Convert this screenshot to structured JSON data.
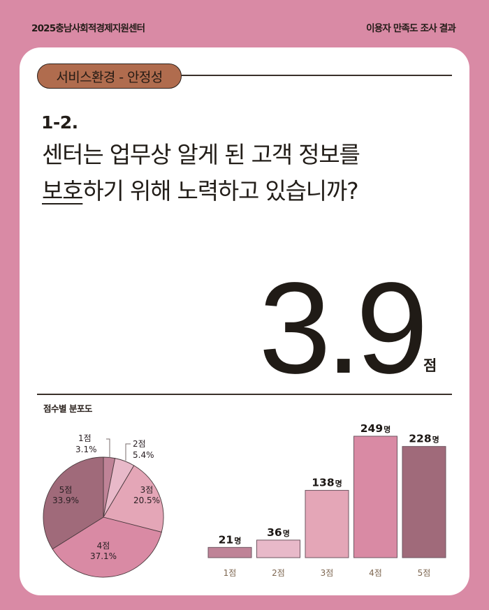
{
  "header": {
    "org_title": "2025충남사회적경제지원센터",
    "report_title": "이용자 만족도 조사 결과"
  },
  "section": {
    "category_pill": "서비스환경 - 안정성"
  },
  "question": {
    "number": "1-2.",
    "line1": "센터는 업무상 알게 된 고객 정보를",
    "line2_underlined": "보호",
    "line2_rest": "하기 위해 노력하고 있습니까?"
  },
  "score": {
    "value": "3.9",
    "unit": "점"
  },
  "distribution": {
    "title": "점수별 분포도"
  },
  "colors": {
    "background": "#d98aa5",
    "pill": "#b06c4e",
    "score_1": "#bf8397",
    "score_2": "#e8b9c9",
    "score_3": "#e4a6b7",
    "score_4": "#d98aa4",
    "score_5": "#a06a7a",
    "axis_label": "#7d6650"
  },
  "chart_data": [
    {
      "type": "pie",
      "title": "점수별 분포도",
      "categories": [
        "1점",
        "2점",
        "3점",
        "4점",
        "5점"
      ],
      "values": [
        3.1,
        5.4,
        20.5,
        37.1,
        33.9
      ],
      "labels": [
        "3.1%",
        "5.4%",
        "20.5%",
        "37.1%",
        "33.9%"
      ],
      "unit": "%",
      "start_angle": "12 o'clock, clockwise"
    },
    {
      "type": "bar",
      "title": "",
      "categories": [
        "1점",
        "2점",
        "3점",
        "4점",
        "5점"
      ],
      "values": [
        21,
        36,
        138,
        249,
        228
      ],
      "value_labels": [
        "21",
        "36",
        "138",
        "249",
        "228"
      ],
      "value_unit": "명",
      "xlabel": "",
      "ylabel": "",
      "ylim": [
        0,
        249
      ],
      "grid": false,
      "legend": "none"
    }
  ]
}
